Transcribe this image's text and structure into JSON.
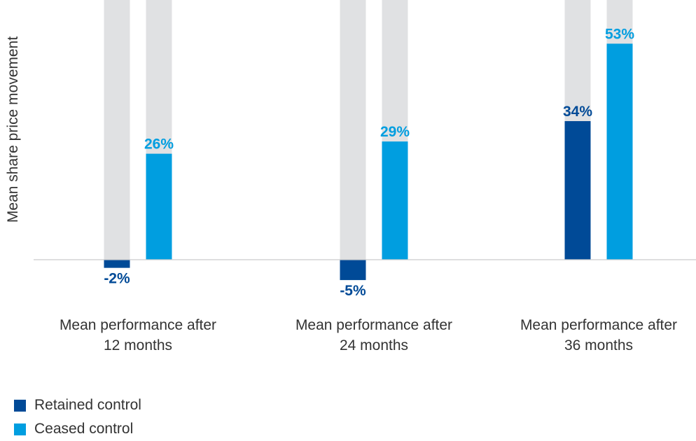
{
  "chart_data": {
    "type": "bar",
    "ylabel": "Mean share price movement",
    "xlabel": "",
    "categories": [
      [
        "Mean performance after",
        "12 months"
      ],
      [
        "Mean performance after",
        "24 months"
      ],
      [
        "Mean performance after",
        "36 months"
      ]
    ],
    "series": [
      {
        "name": "Retained control",
        "values": [
          -2,
          -5,
          34
        ],
        "labels": [
          "-2%",
          "-5%",
          "34%"
        ],
        "color": "#004a97"
      },
      {
        "name": "Ceased control",
        "values": [
          26,
          29,
          53
        ],
        "labels": [
          "26%",
          "29%",
          "53%"
        ],
        "color": "#009ee0"
      }
    ],
    "background_bar_color": "#e0e1e3",
    "ylim": [
      -7,
      62
    ],
    "grid": false,
    "legend_position": "bottom-left"
  }
}
